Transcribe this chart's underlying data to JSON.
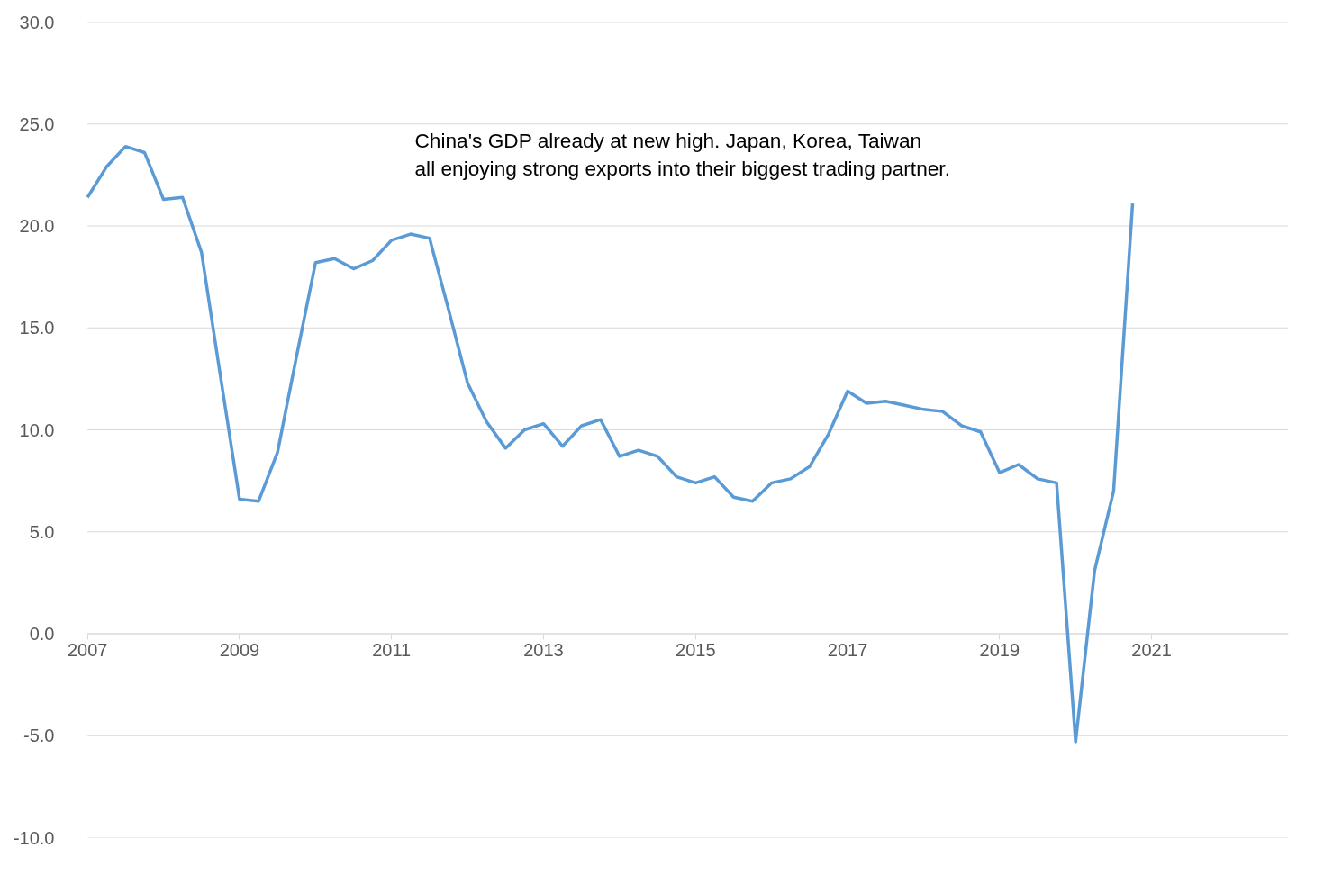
{
  "chart_data": {
    "type": "line",
    "x": [
      2007.0,
      2007.25,
      2007.5,
      2007.75,
      2008.0,
      2008.25,
      2008.5,
      2008.75,
      2009.0,
      2009.25,
      2009.5,
      2009.75,
      2010.0,
      2010.25,
      2010.5,
      2010.75,
      2011.0,
      2011.25,
      2011.5,
      2011.75,
      2012.0,
      2012.25,
      2012.5,
      2012.75,
      2013.0,
      2013.25,
      2013.5,
      2013.75,
      2014.0,
      2014.25,
      2014.5,
      2014.75,
      2015.0,
      2015.25,
      2015.5,
      2015.75,
      2016.0,
      2016.25,
      2016.5,
      2016.75,
      2017.0,
      2017.25,
      2017.5,
      2017.75,
      2018.0,
      2018.25,
      2018.5,
      2018.75,
      2019.0,
      2019.25,
      2019.5,
      2019.75,
      2020.0,
      2020.25,
      2020.5,
      2020.75
    ],
    "series": [
      {
        "color": "#5b9bd5",
        "values": [
          21.4,
          22.9,
          23.9,
          23.6,
          21.3,
          21.4,
          18.7,
          12.6,
          6.6,
          6.5,
          8.9,
          13.6,
          18.2,
          18.4,
          17.9,
          18.3,
          19.3,
          19.6,
          19.4,
          15.9,
          12.3,
          10.4,
          9.1,
          10.0,
          10.3,
          9.2,
          10.2,
          10.5,
          8.7,
          9.0,
          8.7,
          7.7,
          7.4,
          7.7,
          6.7,
          6.5,
          7.4,
          7.6,
          8.2,
          9.8,
          11.9,
          11.3,
          11.4,
          11.2,
          11.0,
          10.9,
          10.2,
          9.9,
          7.9,
          8.3,
          7.6,
          7.4,
          -5.3,
          3.1,
          7.0,
          21.1
        ]
      }
    ],
    "xlim": [
      2007,
      2022.8
    ],
    "xticks": [
      2007,
      2009,
      2011,
      2013,
      2015,
      2017,
      2019,
      2021
    ],
    "ylim": [
      -10,
      30
    ],
    "yticks": [
      {
        "value": -10,
        "label": "-10.0"
      },
      {
        "value": -5,
        "label": "-5.0"
      },
      {
        "value": 0,
        "label": "0.0"
      },
      {
        "value": 5,
        "label": "5.0"
      },
      {
        "value": 10,
        "label": "10.0"
      },
      {
        "value": 15,
        "label": "15.0"
      },
      {
        "value": 20,
        "label": "20.0"
      },
      {
        "value": 25,
        "label": "25.0"
      },
      {
        "value": 30,
        "label": "30.0"
      }
    ],
    "grid": "y",
    "marker": "none",
    "line_style": "solid",
    "annotations": [
      "China's GDP already at new high. Japan, Korea, Taiwan\n all enjoying strong exports into their biggest trading partner."
    ]
  }
}
